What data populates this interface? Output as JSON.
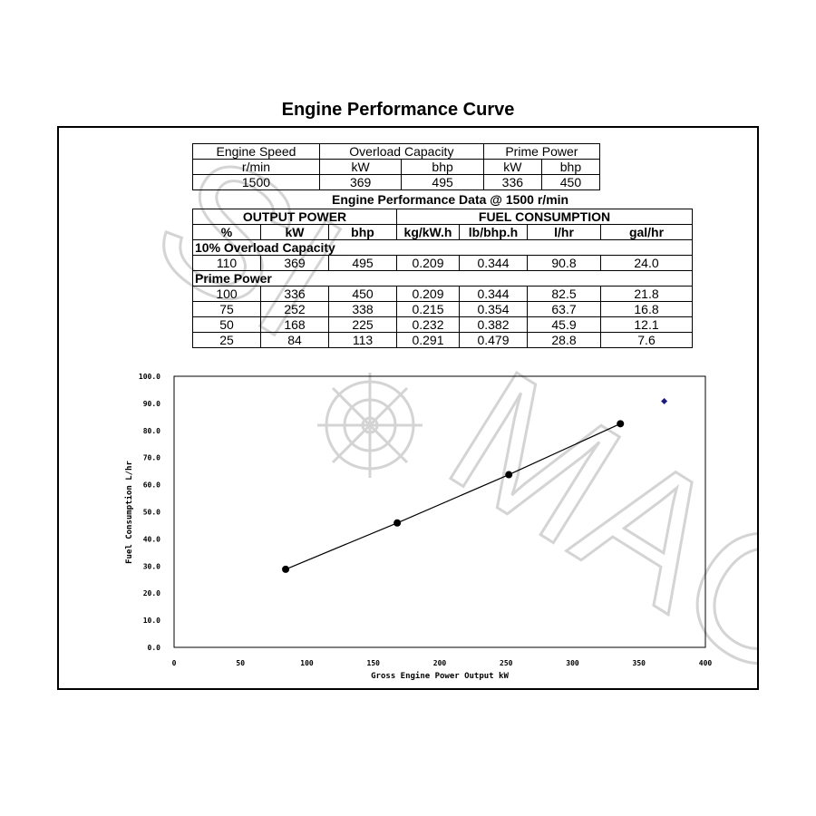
{
  "page_title": "Engine Performance Curve",
  "speed_table": {
    "headers": [
      "Engine Speed",
      "Overload Capacity",
      "Prime Power"
    ],
    "units": [
      "r/min",
      "kW",
      "bhp",
      "kW",
      "bhp"
    ],
    "values": [
      "1500",
      "369",
      "495",
      "336",
      "450"
    ]
  },
  "performance_title": "Engine Performance Data @ 1500 r/min",
  "perf_table": {
    "group_headers": [
      "OUTPUT POWER",
      "FUEL CONSUMPTION"
    ],
    "columns": [
      "%",
      "kW",
      "bhp",
      "kg/kW.h",
      "lb/bhp.h",
      "l/hr",
      "gal/hr"
    ],
    "overload_label": "10% Overload Capacity",
    "overload_row": [
      "110",
      "369",
      "495",
      "0.209",
      "0.344",
      "90.8",
      "24.0"
    ],
    "prime_label": "Prime Power",
    "prime_rows": [
      [
        "100",
        "336",
        "450",
        "0.209",
        "0.344",
        "82.5",
        "21.8"
      ],
      [
        "75",
        "252",
        "338",
        "0.215",
        "0.354",
        "63.7",
        "16.8"
      ],
      [
        "50",
        "168",
        "225",
        "0.232",
        "0.382",
        "45.9",
        "12.1"
      ],
      [
        "25",
        "84",
        "113",
        "0.291",
        "0.479",
        "28.8",
        "7.6"
      ]
    ]
  },
  "chart_data": {
    "type": "scatter",
    "xlabel": "Gross Engine Power Output  kW",
    "ylabel": "Fuel Consumption  L/hr",
    "xlim": [
      0,
      400
    ],
    "ylim": [
      0,
      100
    ],
    "x_ticks": [
      "0",
      "50",
      "100",
      "150",
      "200",
      "250",
      "300",
      "350",
      "400"
    ],
    "y_ticks": [
      "0.0",
      "10.0",
      "20.0",
      "30.0",
      "40.0",
      "50.0",
      "60.0",
      "70.0",
      "80.0",
      "90.0",
      "100.0"
    ],
    "grid": false,
    "series": [
      {
        "name": "Prime Power",
        "marker": "circle",
        "line": true,
        "color": "#000000",
        "points": [
          [
            84,
            28.8
          ],
          [
            168,
            45.9
          ],
          [
            252,
            63.7
          ],
          [
            336,
            82.5
          ]
        ]
      },
      {
        "name": "10% Overload Capacity",
        "marker": "diamond",
        "line": false,
        "color": "#1a1a80",
        "points": [
          [
            369,
            90.8
          ]
        ]
      }
    ]
  },
  "watermark_color": "#cccccc"
}
